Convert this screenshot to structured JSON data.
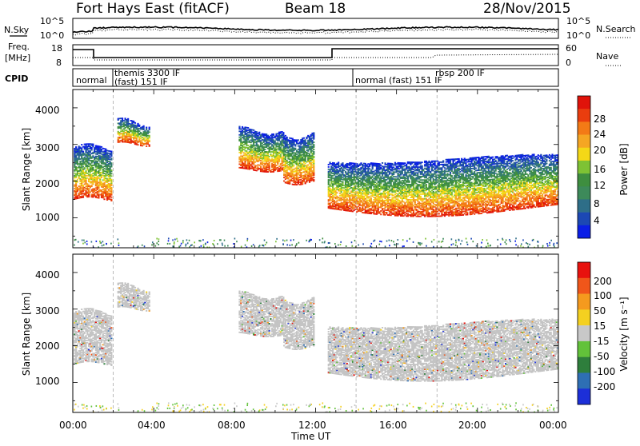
{
  "header": {
    "station": "Fort Hays East (fitACF)",
    "beam": "Beam 18",
    "date": "28/Nov/2015"
  },
  "top_panels": {
    "sky_label": "N.Sky",
    "sky_ticks": [
      "10^5",
      "10^0"
    ],
    "search_label": "N.Search",
    "search_ticks": [
      "10^5",
      "10^0"
    ],
    "freq_label": "Freq.",
    "freq_unit": "[MHz]",
    "freq_ticks": [
      "18",
      "8"
    ],
    "nave_label": "Nave",
    "nave_ticks": [
      "60",
      "0"
    ],
    "cpid_label": "CPID",
    "cpid_segments": [
      {
        "label": "normal"
      },
      {
        "label": "themis 3300 IF"
      },
      {
        "label": "(fast) 151 IF"
      },
      {
        "label": "normal (fast)  151 IF"
      },
      {
        "label": "rbsp 200 IF"
      }
    ]
  },
  "x_axis": {
    "label": "Time UT",
    "ticks": [
      "00:00",
      "04:00",
      "08:00",
      "12:00",
      "16:00",
      "20:00",
      "00:00"
    ]
  },
  "power_panel": {
    "ylabel": "Slant Range [km]",
    "yticks": [
      "1000",
      "2000",
      "3000",
      "4000"
    ],
    "colorbar_label": "Power [dB]",
    "colorbar_ticks": [
      "4",
      "8",
      "12",
      "16",
      "20",
      "24",
      "28"
    ],
    "colorbar_colors": [
      "#0a1ee6",
      "#1c48b4",
      "#2e6e88",
      "#3d8a5a",
      "#3e8e3f",
      "#7ec234",
      "#f4d817",
      "#f5a623",
      "#f37a16",
      "#ea3d0e",
      "#e0130a"
    ]
  },
  "velocity_panel": {
    "ylabel": "Slant Range [km]",
    "yticks": [
      "1000",
      "2000",
      "3000",
      "4000"
    ],
    "colorbar_label": "Velocity [m s⁻¹]",
    "colorbar_ticks": [
      "200",
      "100",
      "50",
      "15",
      "-15",
      "-50",
      "-100",
      "-200"
    ],
    "colorbar_colors": [
      "#1c2fd8",
      "#2e6fb4",
      "#2e7e3c",
      "#62c23a",
      "#c8c8c8",
      "#f4d020",
      "#f59a1e",
      "#f0561a",
      "#e8120e"
    ]
  },
  "chart_data": {
    "type": "heatmap",
    "x_range_hours": [
      0,
      24
    ],
    "y_range_km": [
      180,
      4500
    ],
    "ground_scatter_color": "#c4c4c4",
    "power_bands": [
      {
        "t_start": 0.05,
        "t_end": 1.9,
        "r_low": 1500,
        "r_high": 2900
      },
      {
        "t_start": 2.2,
        "t_end": 3.8,
        "r_low": 3000,
        "r_high": 3600
      },
      {
        "t_start": 8.2,
        "t_end": 10.4,
        "r_low": 2300,
        "r_high": 3400
      },
      {
        "t_start": 10.4,
        "t_end": 11.9,
        "r_low": 1950,
        "r_high": 3250
      },
      {
        "t_start": 12.6,
        "t_end": 24.0,
        "r_low": 1050,
        "r_high": 2600
      }
    ]
  }
}
